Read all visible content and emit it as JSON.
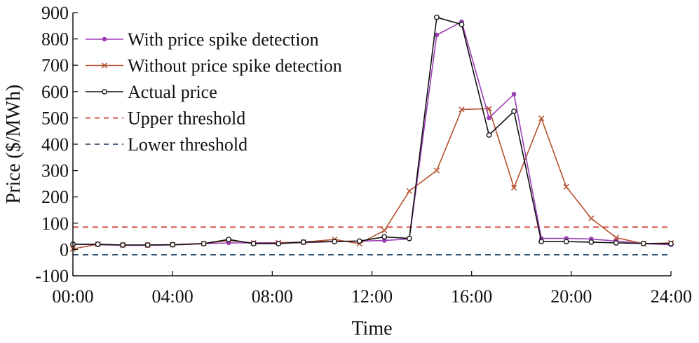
{
  "chart_data": {
    "type": "line",
    "xlabel": "Time",
    "ylabel": "Price ($/MWh)",
    "xlim": [
      0,
      24
    ],
    "ylim": [
      -100,
      900
    ],
    "x_ticks": [
      {
        "value": 0,
        "label": "00:00"
      },
      {
        "value": 4,
        "label": "04:00"
      },
      {
        "value": 8,
        "label": "08:00"
      },
      {
        "value": 12,
        "label": "12:00"
      },
      {
        "value": 16,
        "label": "16:00"
      },
      {
        "value": 20,
        "label": "20:00"
      },
      {
        "value": 24,
        "label": "24:00"
      }
    ],
    "y_ticks": [
      {
        "value": -100,
        "label": "-100"
      },
      {
        "value": 0,
        "label": "0"
      },
      {
        "value": 100,
        "label": "100"
      },
      {
        "value": 200,
        "label": "200"
      },
      {
        "value": 300,
        "label": "300"
      },
      {
        "value": 400,
        "label": "400"
      },
      {
        "value": 500,
        "label": "500"
      },
      {
        "value": 600,
        "label": "600"
      },
      {
        "value": 700,
        "label": "700"
      },
      {
        "value": 800,
        "label": "800"
      },
      {
        "value": 900,
        "label": "900"
      }
    ],
    "grid": false,
    "legend_position": "top-left",
    "x": [
      0,
      1,
      2,
      3,
      4,
      5.25,
      6.25,
      7.25,
      8.25,
      9.25,
      10.5,
      11.5,
      12.5,
      13.5,
      14.6,
      15.6,
      16.7,
      17.7,
      18.8,
      19.8,
      20.8,
      21.8,
      22.9,
      24
    ],
    "series": [
      {
        "name": "With price spike detection",
        "color": "#9b3fb5",
        "marker": "dot",
        "values": [
          20,
          18,
          16,
          16,
          17,
          22,
          25,
          25,
          24,
          26,
          30,
          32,
          34,
          40,
          815,
          865,
          500,
          590,
          42,
          42,
          40,
          32,
          22,
          18
        ]
      },
      {
        "name": "Without price spike detection",
        "color": "#b5502e",
        "marker": "x",
        "values": [
          2,
          20,
          17,
          17,
          18,
          23,
          34,
          25,
          26,
          28,
          38,
          22,
          72,
          222,
          300,
          532,
          535,
          235,
          498,
          238,
          118,
          45,
          22,
          25
        ]
      },
      {
        "name": "Actual price",
        "color": "#111111",
        "marker": "circle",
        "values": [
          20,
          20,
          17,
          17,
          18,
          22,
          38,
          22,
          22,
          28,
          30,
          32,
          48,
          42,
          882,
          855,
          435,
          525,
          30,
          30,
          28,
          25,
          23,
          22
        ]
      }
    ],
    "thresholds": [
      {
        "name": "Upper threshold",
        "value": 85,
        "color": "#d43a2f",
        "style": "dashed"
      },
      {
        "name": "Lower threshold",
        "value": -20,
        "color": "#2f4f6f",
        "style": "dashed"
      }
    ]
  }
}
